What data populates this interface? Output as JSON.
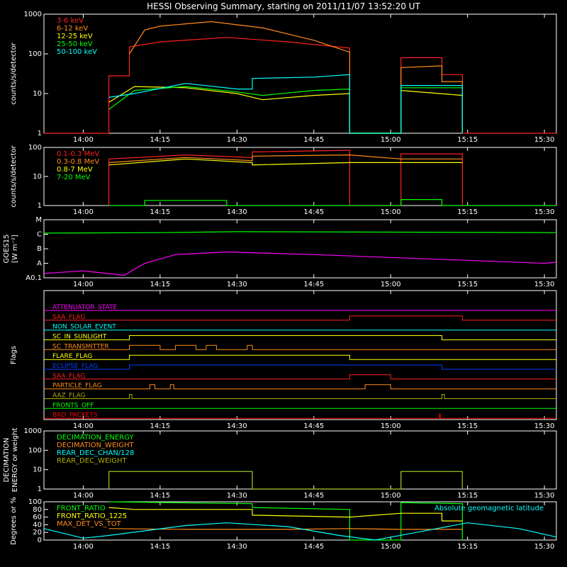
{
  "title": "HESSI Observing Summary, starting on 2011/11/07 13:52:20 UT",
  "colors": {
    "red": "#ff2020",
    "orange": "#ff8c1a",
    "yellow": "#ffff00",
    "green": "#00ff00",
    "cyan": "#00ffff",
    "magenta": "#ff00ff",
    "blue": "#0040ff",
    "olive": "#aaaa00",
    "brightred": "#ff0000",
    "axis": "#ffffff"
  },
  "x_axis": {
    "range": [
      "13:52:20",
      "15:32:20"
    ],
    "ticks": [
      "14:00",
      "14:15",
      "14:30",
      "14:45",
      "15:00",
      "15:15",
      "15:30"
    ]
  },
  "chart_data": [
    {
      "type": "line",
      "ylabel": "counts/s/detector",
      "yscale": "log",
      "ylim": [
        1,
        1000
      ],
      "ytick_labels": [
        "1",
        "10",
        "100",
        "1000"
      ],
      "series": [
        {
          "name": "3-6 keV",
          "color": "red",
          "points": [
            [
              "13:52:20",
              1
            ],
            [
              "14:05",
              1
            ],
            [
              "14:05",
              28
            ],
            [
              "14:09",
              28
            ],
            [
              "14:09",
              150
            ],
            [
              "14:15",
              200
            ],
            [
              "14:28",
              260
            ],
            [
              "14:40",
              200
            ],
            [
              "14:52",
              140
            ],
            [
              "14:52",
              1
            ],
            [
              "15:02",
              1
            ],
            [
              "15:02",
              80
            ],
            [
              "15:10",
              80
            ],
            [
              "15:10",
              30
            ],
            [
              "15:14",
              30
            ],
            [
              "15:14",
              1
            ],
            [
              "15:32:20",
              1
            ]
          ]
        },
        {
          "name": "6-12 keV",
          "color": "orange",
          "points": [
            [
              "14:09",
              100
            ],
            [
              "14:12",
              400
            ],
            [
              "14:15",
              500
            ],
            [
              "14:25",
              650
            ],
            [
              "14:35",
              450
            ],
            [
              "14:45",
              220
            ],
            [
              "14:52",
              110
            ],
            [
              "14:52",
              1
            ],
            [
              "15:02",
              1
            ],
            [
              "15:02",
              45
            ],
            [
              "15:10",
              50
            ],
            [
              "15:10",
              20
            ],
            [
              "15:14",
              20
            ],
            [
              "15:14",
              1
            ]
          ]
        },
        {
          "name": "12-25 keV",
          "color": "yellow",
          "points": [
            [
              "14:05",
              6
            ],
            [
              "14:10",
              15
            ],
            [
              "14:20",
              14
            ],
            [
              "14:30",
              10
            ],
            [
              "14:35",
              7
            ],
            [
              "14:45",
              9
            ],
            [
              "14:52",
              10
            ],
            [
              "14:52",
              1
            ],
            [
              "15:02",
              1
            ],
            [
              "15:02",
              12
            ],
            [
              "15:14",
              9
            ],
            [
              "15:14",
              1
            ]
          ]
        },
        {
          "name": "25-50 keV",
          "color": "green",
          "points": [
            [
              "14:05",
              4
            ],
            [
              "14:10",
              12
            ],
            [
              "14:20",
              15
            ],
            [
              "14:30",
              11
            ],
            [
              "14:35",
              9
            ],
            [
              "14:45",
              12
            ],
            [
              "14:52",
              13
            ],
            [
              "14:52",
              1
            ],
            [
              "15:02",
              1
            ],
            [
              "15:02",
              14
            ],
            [
              "15:14",
              14
            ],
            [
              "15:14",
              1
            ]
          ]
        },
        {
          "name": "50-100 keV",
          "color": "cyan",
          "points": [
            [
              "14:05",
              8
            ],
            [
              "14:10",
              10
            ],
            [
              "14:20",
              18
            ],
            [
              "14:30",
              13
            ],
            [
              "14:33",
              13
            ],
            [
              "14:33",
              24
            ],
            [
              "14:45",
              26
            ],
            [
              "14:52",
              30
            ],
            [
              "14:52",
              1
            ],
            [
              "15:02",
              1
            ],
            [
              "15:02",
              16
            ],
            [
              "15:14",
              16
            ],
            [
              "15:14",
              1
            ]
          ]
        }
      ]
    },
    {
      "type": "line",
      "ylabel": "counts/s/detector",
      "yscale": "log",
      "ylim": [
        1,
        100
      ],
      "ytick_labels": [
        "1",
        "10",
        "100"
      ],
      "series": [
        {
          "name": "0.1-0.3 MeV",
          "color": "red",
          "points": [
            [
              "14:05",
              1
            ],
            [
              "14:05",
              40
            ],
            [
              "14:20",
              55
            ],
            [
              "14:33",
              45
            ],
            [
              "14:33",
              70
            ],
            [
              "14:52",
              80
            ],
            [
              "14:52",
              1
            ],
            [
              "15:02",
              1
            ],
            [
              "15:02",
              60
            ],
            [
              "15:14",
              60
            ],
            [
              "15:14",
              1
            ]
          ]
        },
        {
          "name": "0.3-0.8 MeV",
          "color": "orange",
          "points": [
            [
              "14:05",
              30
            ],
            [
              "14:20",
              45
            ],
            [
              "14:33",
              35
            ],
            [
              "14:33",
              50
            ],
            [
              "14:52",
              55
            ],
            [
              "15:02",
              40
            ],
            [
              "15:14",
              40
            ]
          ]
        },
        {
          "name": "0.8-7 MeV",
          "color": "yellow",
          "points": [
            [
              "14:05",
              25
            ],
            [
              "14:20",
              40
            ],
            [
              "14:33",
              30
            ],
            [
              "14:33",
              25
            ],
            [
              "14:52",
              30
            ],
            [
              "15:02",
              30
            ],
            [
              "15:14",
              30
            ]
          ]
        },
        {
          "name": "7-20 MeV",
          "color": "green",
          "points": [
            [
              "14:05",
              1
            ],
            [
              "14:12",
              1
            ],
            [
              "14:12",
              1.5
            ],
            [
              "14:28",
              1.5
            ],
            [
              "14:28",
              1
            ],
            [
              "15:02",
              1
            ],
            [
              "15:02",
              1.6
            ],
            [
              "15:10",
              1.6
            ],
            [
              "15:10",
              1
            ],
            [
              "15:32:20",
              1
            ]
          ]
        }
      ]
    },
    {
      "type": "line",
      "ylabel": "GOES15",
      "ylabel2": "[W m⁻²]",
      "yscale": "log",
      "ylim": [
        1e-08,
        0.0001
      ],
      "ytick_labels": [
        "A0.1",
        "A",
        "B",
        "C",
        "M"
      ],
      "ytick_values": [
        1e-08,
        1e-07,
        1e-06,
        1e-05,
        0.0001
      ],
      "series": [
        {
          "name": "",
          "color": "green",
          "points": [
            [
              "13:52:20",
              1.2e-05
            ],
            [
              "14:15",
              1.3e-05
            ],
            [
              "14:30",
              1.5e-05
            ],
            [
              "15:00",
              1.4e-05
            ],
            [
              "15:32:20",
              1.3e-05
            ]
          ]
        },
        {
          "name": "",
          "color": "magenta",
          "points": [
            [
              "13:52:20",
              2e-08
            ],
            [
              "14:00",
              3e-08
            ],
            [
              "14:08",
              1.5e-08
            ],
            [
              "14:12",
              1e-07
            ],
            [
              "14:18",
              4e-07
            ],
            [
              "14:28",
              6e-07
            ],
            [
              "14:45",
              4e-07
            ],
            [
              "15:00",
              2.5e-07
            ],
            [
              "15:15",
              1.6e-07
            ],
            [
              "15:30",
              1e-07
            ],
            [
              "15:32:20",
              1.2e-07
            ]
          ]
        }
      ]
    },
    {
      "type": "flags",
      "ylabel": "Flags",
      "flags": [
        {
          "name": "ATTENUATOR_STATE",
          "color": "magenta",
          "segments": []
        },
        {
          "name": "SAA_FLAG",
          "color": "red",
          "segments": [
            [
              "14:52",
              "15:14"
            ]
          ]
        },
        {
          "name": "NON_SOLAR_EVENT",
          "color": "cyan",
          "segments": []
        },
        {
          "name": "SC_IN_SUNLIGHT",
          "color": "yellow",
          "segments": [
            [
              "14:09",
              "15:10"
            ]
          ]
        },
        {
          "name": "SC_TRANSMITTER",
          "color": "orange",
          "segments": [
            [
              "14:09",
              "14:15"
            ],
            [
              "14:18",
              "14:22"
            ],
            [
              "14:24",
              "14:26"
            ],
            [
              "14:32",
              "14:33"
            ]
          ]
        },
        {
          "name": "FLARE_FLAG",
          "color": "yellow",
          "segments": [
            [
              "14:09",
              "14:52"
            ]
          ]
        },
        {
          "name": "ECLIPSE_FLAG",
          "color": "blue",
          "segments": [
            [
              "14:09",
              "15:10"
            ]
          ]
        },
        {
          "name": "SAA_FLAG",
          "color": "red",
          "segments": [
            [
              "14:52",
              "15:00"
            ]
          ]
        },
        {
          "name": "PARTICLE_FLAG",
          "color": "orange",
          "segments": [
            [
              "14:13",
              "14:14"
            ],
            [
              "14:17",
              "14:17:40"
            ],
            [
              "14:55",
              "15:00"
            ]
          ]
        },
        {
          "name": "AAZ_FLAG",
          "color": "olive",
          "segments": [
            [
              "14:09",
              "14:09:30"
            ],
            [
              "15:10",
              "15:10:30"
            ]
          ]
        },
        {
          "name": "FRONTS_OFF",
          "color": "green",
          "segments": []
        },
        {
          "name": "BAD_PACKETS",
          "color": "brightred",
          "segments": [
            [
              "15:09:30",
              "15:09:40"
            ]
          ]
        }
      ]
    },
    {
      "type": "line",
      "ylabel": "DECIMATION",
      "ylabel2": "ENERGY or weight",
      "yscale": "log",
      "ylim": [
        1,
        1000
      ],
      "ytick_labels": [
        "1",
        "10",
        "100",
        "1000"
      ],
      "series": [
        {
          "name": "DECIMATION_ENERGY",
          "color": "green",
          "points": []
        },
        {
          "name": "DECIMATION_WEIGHT",
          "color": "orange",
          "points": []
        },
        {
          "name": "REAR_DEC_CHAN/128",
          "color": "cyan",
          "points": [
            [
              "14:05",
              1
            ],
            [
              "14:05",
              8
            ],
            [
              "14:33",
              8
            ],
            [
              "14:33",
              1
            ],
            [
              "15:02",
              1
            ],
            [
              "15:02",
              8
            ],
            [
              "15:14",
              8
            ],
            [
              "15:14",
              1
            ]
          ]
        },
        {
          "name": "REAR_DEC_WEIGHT",
          "color": "olive",
          "points": [
            [
              "14:05",
              1
            ],
            [
              "14:05",
              8
            ],
            [
              "14:33",
              8
            ],
            [
              "14:33",
              1
            ],
            [
              "15:02",
              1
            ],
            [
              "15:02",
              8
            ],
            [
              "15:14",
              8
            ],
            [
              "15:14",
              1
            ]
          ]
        }
      ]
    },
    {
      "type": "line",
      "ylabel": "Degrees or %",
      "yscale": "linear",
      "ylim": [
        0,
        100
      ],
      "ytick_labels": [
        "0",
        "20",
        "40",
        "60",
        "80",
        "100"
      ],
      "annotation": "Absolute geomagnetic latitude",
      "series": [
        {
          "name": "FRONT_RATIO",
          "color": "green",
          "points": [
            [
              "14:05",
              100
            ],
            [
              "14:33",
              95
            ],
            [
              "14:33",
              85
            ],
            [
              "14:52",
              80
            ],
            [
              "14:52",
              0
            ],
            [
              "15:02",
              0
            ],
            [
              "15:02",
              98
            ],
            [
              "15:14",
              95
            ],
            [
              "15:14",
              0
            ]
          ]
        },
        {
          "name": "FRONT_RATIO_1225",
          "color": "yellow",
          "points": [
            [
              "14:05",
              85
            ],
            [
              "14:10",
              80
            ],
            [
              "14:33",
              80
            ],
            [
              "14:33",
              65
            ],
            [
              "14:52",
              60
            ],
            [
              "15:02",
              70
            ],
            [
              "15:10",
              70
            ],
            [
              "15:10",
              50
            ],
            [
              "15:14",
              50
            ]
          ]
        },
        {
          "name": "MAX_DET_VS_TOT",
          "color": "orange",
          "points": [
            [
              "14:05",
              30
            ],
            [
              "14:20",
              28
            ],
            [
              "14:40",
              28
            ],
            [
              "14:52",
              30
            ],
            [
              "15:02",
              28
            ],
            [
              "15:14",
              28
            ]
          ]
        },
        {
          "name": "",
          "color": "cyan",
          "points": [
            [
              "13:52:20",
              30
            ],
            [
              "14:00",
              5
            ],
            [
              "14:05",
              12
            ],
            [
              "14:20",
              38
            ],
            [
              "14:28",
              45
            ],
            [
              "14:40",
              35
            ],
            [
              "14:50",
              12
            ],
            [
              "14:57",
              0
            ],
            [
              "15:05",
              20
            ],
            [
              "15:15",
              45
            ],
            [
              "15:25",
              30
            ],
            [
              "15:32:20",
              8
            ]
          ]
        }
      ]
    }
  ]
}
